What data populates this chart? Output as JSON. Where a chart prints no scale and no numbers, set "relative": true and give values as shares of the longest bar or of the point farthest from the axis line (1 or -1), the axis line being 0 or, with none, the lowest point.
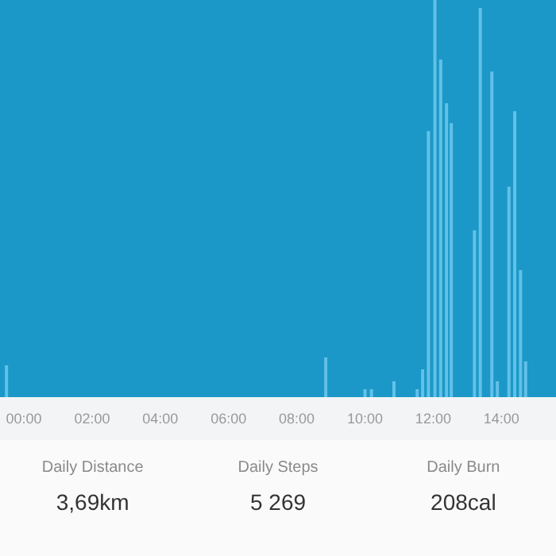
{
  "chart_data": [
    {
      "type": "bar",
      "relative": true,
      "color": "#62c1e8",
      "x": [
        -0.51,
        8.85,
        10.0,
        10.19,
        10.85,
        11.53,
        11.69,
        11.86,
        12.05,
        12.22,
        12.39,
        12.53,
        13.21,
        13.38,
        13.72,
        13.88,
        14.22,
        14.39,
        14.56,
        14.71
      ],
      "values": [
        0.08,
        0.1,
        0.02,
        0.02,
        0.04,
        0.02,
        0.07,
        0.67,
        1,
        0.85,
        0.74,
        0.69,
        0.42,
        0.98,
        0.82,
        0.04,
        0.53,
        0.72,
        0.32,
        0.09
      ],
      "xlim": [
        -0.7,
        15.6
      ],
      "xticks": [
        {
          "value": 0,
          "label": "00:00"
        },
        {
          "value": 2,
          "label": "02:00"
        },
        {
          "value": 4,
          "label": "04:00"
        },
        {
          "value": 6,
          "label": "06:00"
        },
        {
          "value": 8,
          "label": "08:00"
        },
        {
          "value": 10,
          "label": "10:00"
        },
        {
          "value": 12,
          "label": "12:00"
        },
        {
          "value": 14,
          "label": "14:00"
        }
      ],
      "tick_labels": "x",
      "grid": false
    },
    {
      "type": "other",
      "annotations": [
        "Daily Distance",
        "3,69km",
        "Daily Steps",
        "5 269",
        "Daily Burn",
        "208cal"
      ]
    }
  ]
}
